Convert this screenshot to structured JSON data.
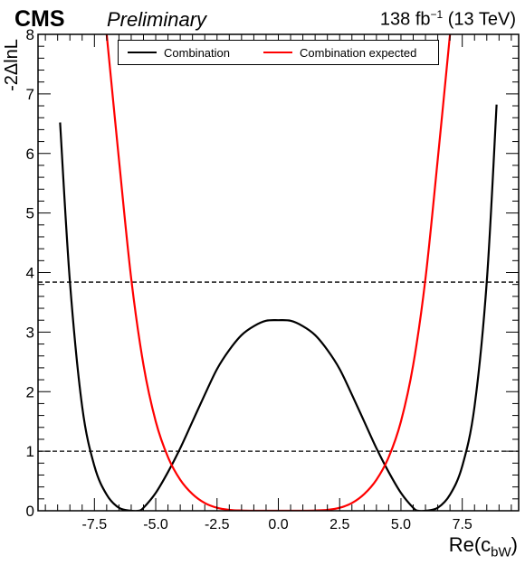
{
  "header": {
    "experiment": "CMS",
    "status": "Preliminary",
    "lumi_value": "138 fb",
    "lumi_exp": "−1",
    "energy": "(13 TeV)"
  },
  "chart_data": {
    "type": "line",
    "xlabel_main": "Re(c",
    "xlabel_sub": "bW",
    "xlabel_end": ")",
    "ylabel": "-2ΔlnL",
    "xlim": [
      -9.8,
      9.8
    ],
    "ylim": [
      0,
      8
    ],
    "x_ticks": [
      -7.5,
      -5.0,
      -2.5,
      0.0,
      2.5,
      5.0,
      7.5
    ],
    "x_tick_labels": [
      "-7.5",
      "-5.0",
      "-2.5",
      "0.0",
      "2.5",
      "5.0",
      "7.5"
    ],
    "y_ticks": [
      0,
      1,
      2,
      3,
      4,
      5,
      6,
      7,
      8
    ],
    "y_tick_labels": [
      "0",
      "1",
      "2",
      "3",
      "4",
      "5",
      "6",
      "7",
      "8"
    ],
    "reference_lines": [
      1.0,
      3.84
    ],
    "legend_position": "top",
    "series": [
      {
        "name": "Combination",
        "color": "#000000",
        "x": [
          -8.9,
          -8.5,
          -8.0,
          -7.5,
          -7.0,
          -6.5,
          -6.0,
          -5.7,
          -5.5,
          -5.0,
          -4.5,
          -4.0,
          -3.5,
          -3.0,
          -2.5,
          -2.0,
          -1.5,
          -1.0,
          -0.5,
          0.0,
          0.5,
          1.0,
          1.5,
          2.0,
          2.5,
          3.0,
          3.5,
          4.0,
          4.5,
          5.0,
          5.5,
          5.7,
          6.0,
          6.5,
          7.0,
          7.5,
          8.0,
          8.5,
          8.9
        ],
        "y": [
          6.52,
          3.85,
          1.75,
          0.75,
          0.27,
          0.05,
          0.0,
          0.0,
          0.05,
          0.3,
          0.65,
          1.05,
          1.5,
          1.95,
          2.38,
          2.7,
          2.95,
          3.1,
          3.19,
          3.2,
          3.19,
          3.1,
          2.95,
          2.7,
          2.38,
          1.95,
          1.5,
          1.05,
          0.65,
          0.3,
          0.05,
          0.0,
          0.0,
          0.05,
          0.27,
          0.75,
          1.75,
          3.85,
          6.82
        ]
      },
      {
        "name": "Combination expected",
        "color": "#ff0000",
        "x": [
          -7.0,
          -6.5,
          -6.0,
          -5.5,
          -5.0,
          -4.5,
          -4.0,
          -3.5,
          -3.0,
          -2.5,
          -2.0,
          -1.5,
          -1.0,
          -0.5,
          0.0,
          0.5,
          1.0,
          1.5,
          2.0,
          2.5,
          3.0,
          3.5,
          4.0,
          4.5,
          5.0,
          5.5,
          6.0,
          6.5,
          7.0
        ],
        "y": [
          8.0,
          5.9,
          3.9,
          2.45,
          1.5,
          0.9,
          0.52,
          0.28,
          0.13,
          0.05,
          0.015,
          0.004,
          0.0,
          0.0,
          0.0,
          0.0,
          0.0,
          0.004,
          0.015,
          0.05,
          0.13,
          0.28,
          0.52,
          0.9,
          1.5,
          2.45,
          3.9,
          5.9,
          8.0
        ]
      }
    ]
  }
}
